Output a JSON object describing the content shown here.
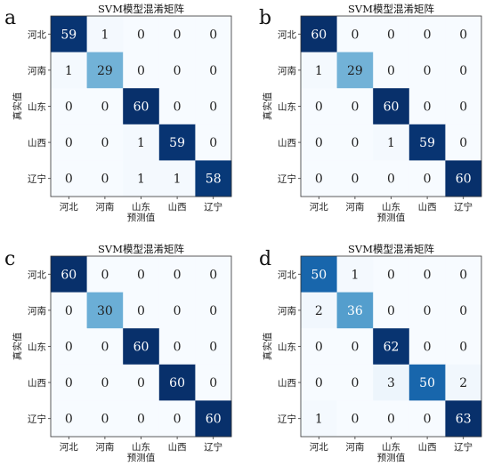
{
  "chart_data": [
    {
      "type": "heatmap",
      "panel_letter": "a",
      "title": "SVM模型混淆矩阵",
      "xlabel": "预测值",
      "ylabel": "真实值",
      "rows": [
        "河北",
        "河南",
        "山东",
        "山西",
        "辽宁"
      ],
      "cols": [
        "河北",
        "河南",
        "山东",
        "山西",
        "辽宁"
      ],
      "values": [
        [
          59,
          1,
          0,
          0,
          0
        ],
        [
          1,
          29,
          0,
          0,
          0
        ],
        [
          0,
          0,
          60,
          0,
          0
        ],
        [
          0,
          0,
          1,
          59,
          0
        ],
        [
          0,
          0,
          1,
          1,
          58
        ]
      ]
    },
    {
      "type": "heatmap",
      "panel_letter": "b",
      "title": "SVM模型混淆矩阵",
      "xlabel": "预测值",
      "ylabel": "真实值",
      "rows": [
        "河北",
        "河南",
        "山东",
        "山西",
        "辽宁"
      ],
      "cols": [
        "河北",
        "河南",
        "山东",
        "山西",
        "辽宁"
      ],
      "values": [
        [
          60,
          0,
          0,
          0,
          0
        ],
        [
          1,
          29,
          0,
          0,
          0
        ],
        [
          0,
          0,
          60,
          0,
          0
        ],
        [
          0,
          0,
          1,
          59,
          0
        ],
        [
          0,
          0,
          0,
          0,
          60
        ]
      ]
    },
    {
      "type": "heatmap",
      "panel_letter": "c",
      "title": "SVM模型混淆矩阵",
      "xlabel": "预测值",
      "ylabel": "真实值",
      "rows": [
        "河北",
        "河南",
        "山东",
        "山西",
        "辽宁"
      ],
      "cols": [
        "河北",
        "河南",
        "山东",
        "山西",
        "辽宁"
      ],
      "values": [
        [
          60,
          0,
          0,
          0,
          0
        ],
        [
          0,
          30,
          0,
          0,
          0
        ],
        [
          0,
          0,
          60,
          0,
          0
        ],
        [
          0,
          0,
          0,
          60,
          0
        ],
        [
          0,
          0,
          0,
          0,
          60
        ]
      ]
    },
    {
      "type": "heatmap",
      "panel_letter": "d",
      "title": "SVM模型混淆矩阵",
      "xlabel": "预测值",
      "ylabel": "真实值",
      "rows": [
        "河北",
        "河南",
        "山东",
        "山西",
        "辽宁"
      ],
      "cols": [
        "河北",
        "河南",
        "山东",
        "山西",
        "辽宁"
      ],
      "values": [
        [
          50,
          1,
          0,
          0,
          0
        ],
        [
          2,
          36,
          0,
          0,
          0
        ],
        [
          0,
          0,
          62,
          0,
          0
        ],
        [
          0,
          0,
          3,
          50,
          2
        ],
        [
          1,
          0,
          0,
          0,
          63
        ]
      ]
    }
  ],
  "colors": {
    "scale": [
      "#f7fbff",
      "#deebf7",
      "#c6dbef",
      "#9ecae1",
      "#6baed6",
      "#4292c6",
      "#2171b5",
      "#08519c",
      "#08306b"
    ],
    "light_text": "#ffffff",
    "dark_text": "#222222"
  }
}
